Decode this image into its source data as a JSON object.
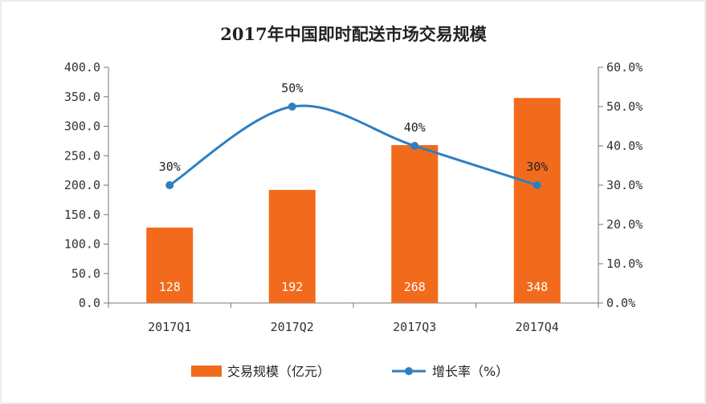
{
  "chart_data": {
    "type": "bar",
    "title": "2017年中国即时配送市场交易规模",
    "categories": [
      "2017Q1",
      "2017Q2",
      "2017Q3",
      "2017Q4"
    ],
    "y_left": {
      "range": [
        0,
        400
      ],
      "ticks": [
        "0.0",
        "50.0",
        "100.0",
        "150.0",
        "200.0",
        "250.0",
        "300.0",
        "350.0",
        "400.0"
      ]
    },
    "y_right": {
      "range": [
        0,
        60
      ],
      "ticks": [
        "0.0%",
        "10.0%",
        "20.0%",
        "30.0%",
        "40.0%",
        "50.0%",
        "60.0%"
      ]
    },
    "series": [
      {
        "name": "交易规模（亿元）",
        "type": "bar",
        "axis": "left",
        "color": "#F26B1D",
        "values": [
          128,
          192,
          268,
          348
        ],
        "labels": [
          "128",
          "192",
          "268",
          "348"
        ]
      },
      {
        "name": "增长率（%）",
        "type": "line",
        "axis": "right",
        "color": "#2E7EC1",
        "values": [
          30,
          50,
          40,
          30
        ],
        "labels": [
          "30%",
          "50%",
          "40%",
          "30%"
        ]
      }
    ],
    "grid": false,
    "legend": "bottom-center"
  }
}
